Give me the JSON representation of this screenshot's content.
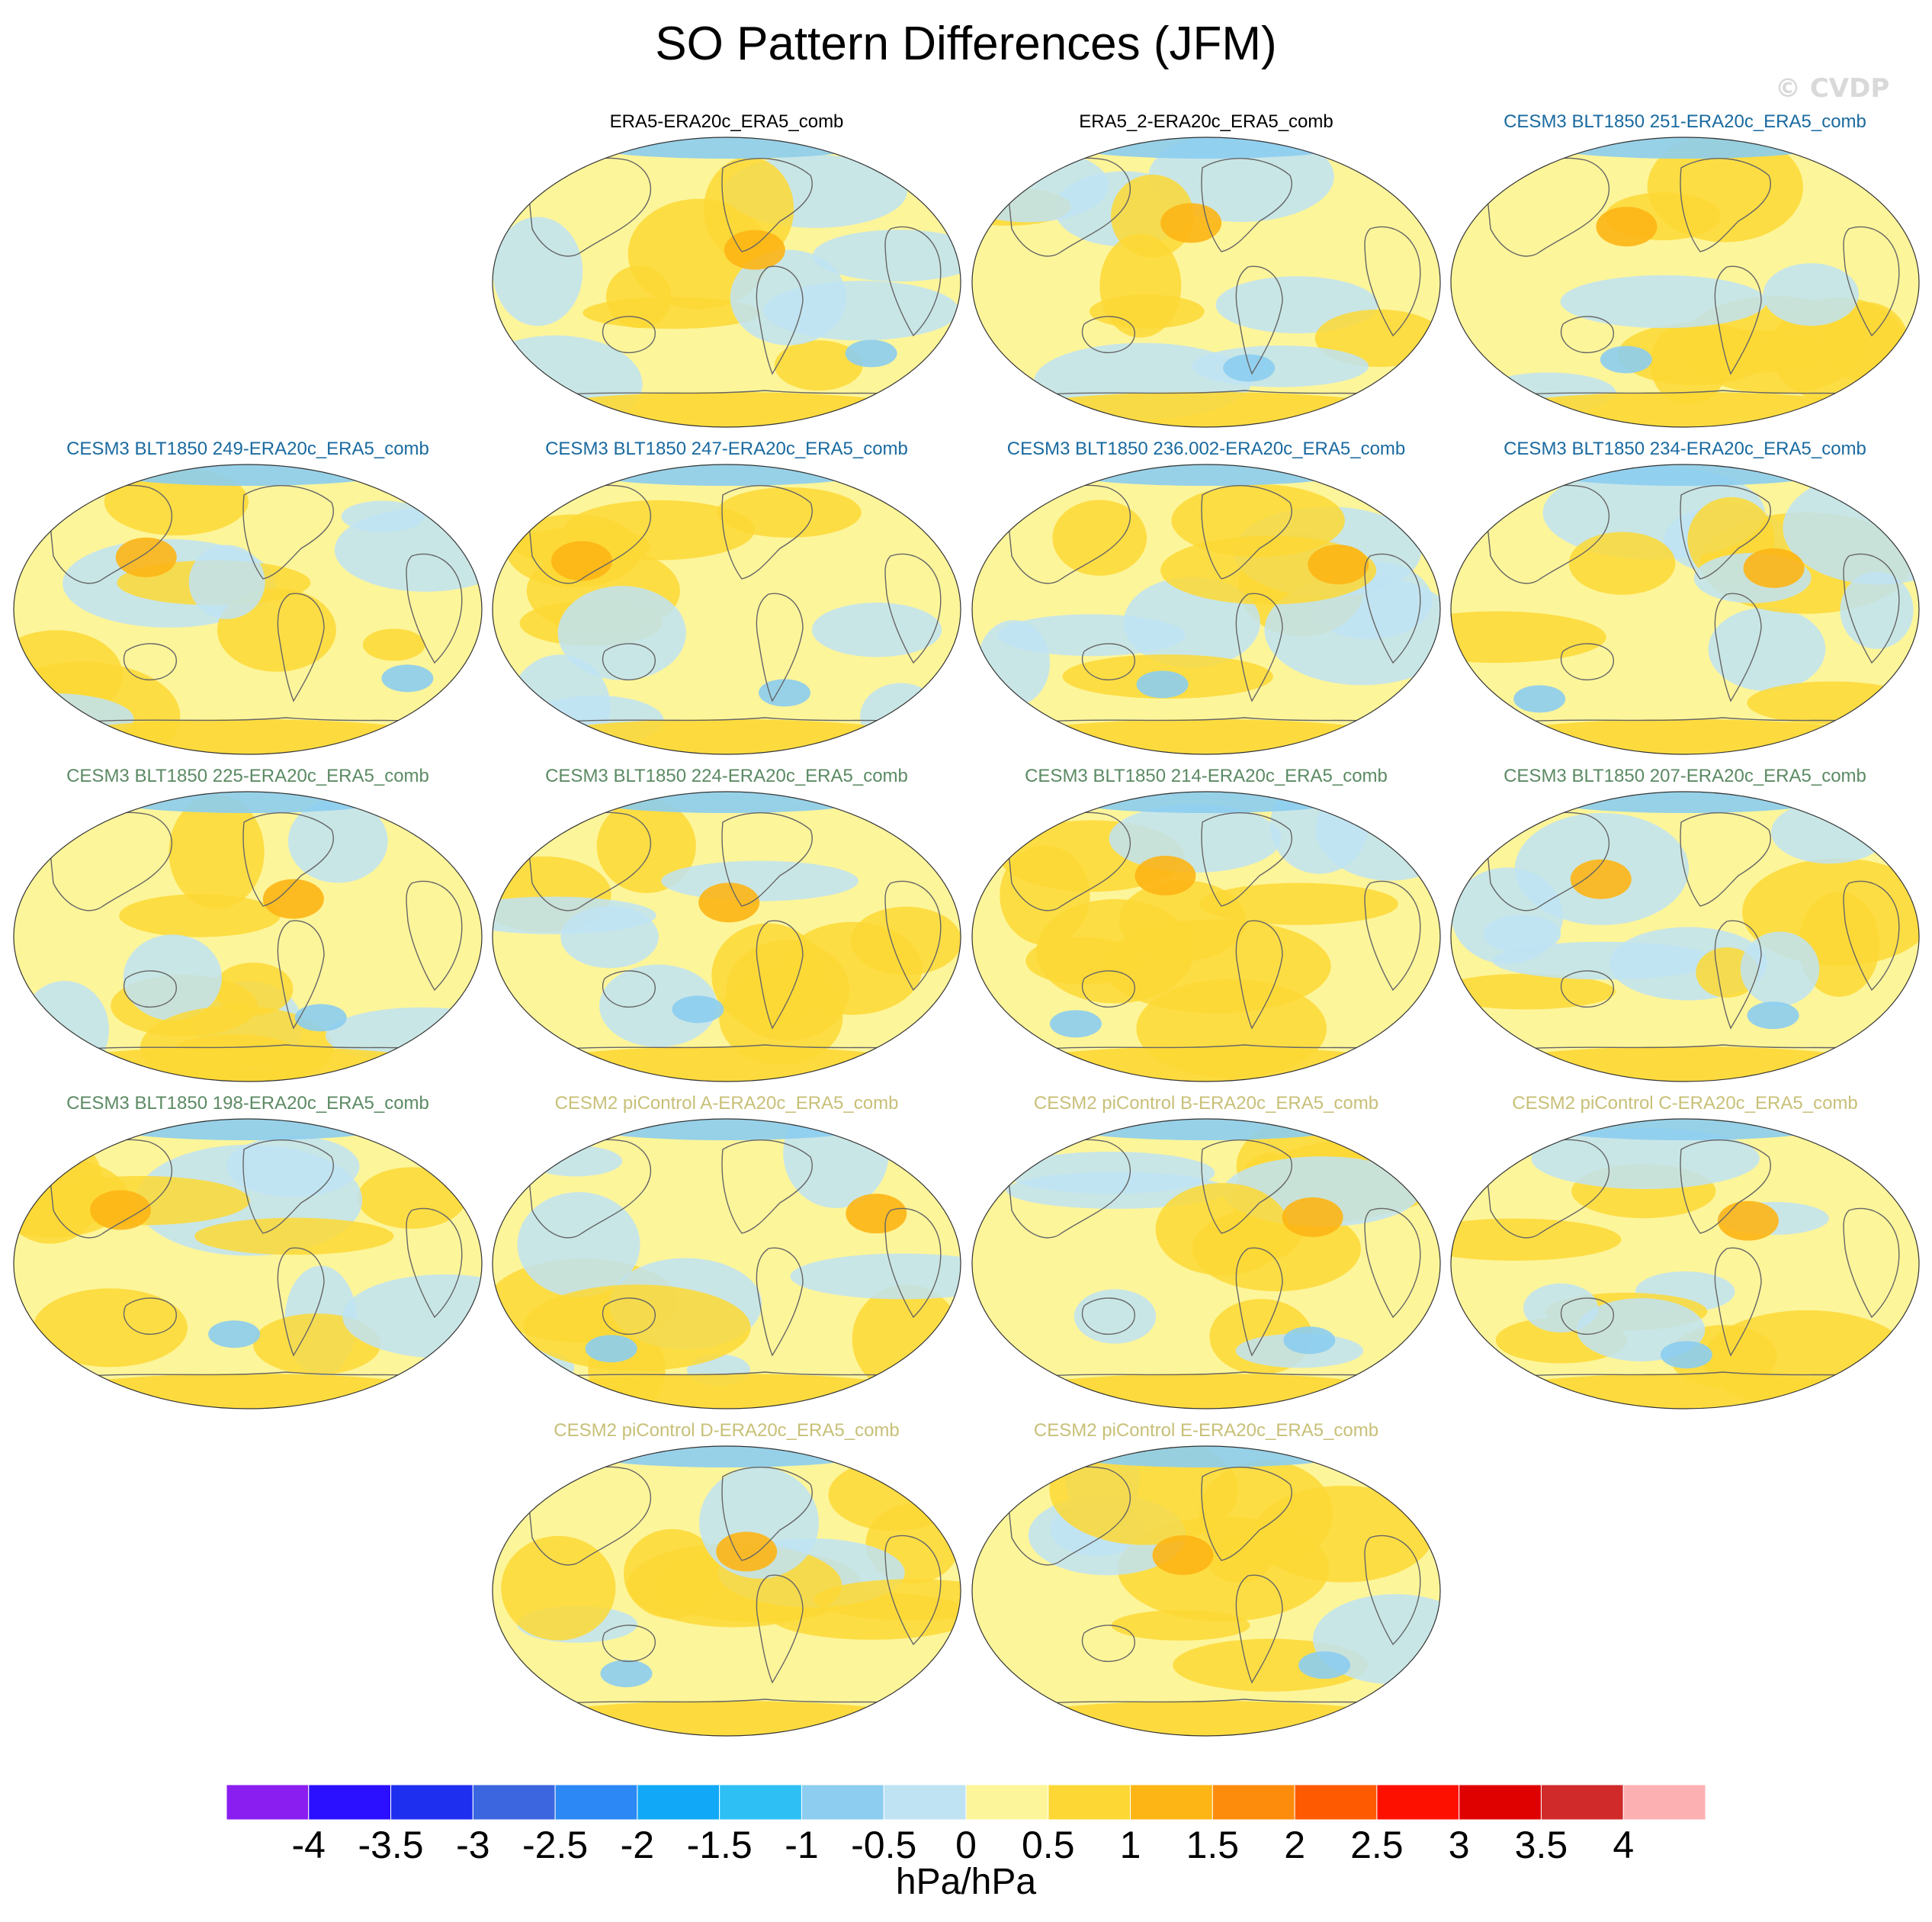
{
  "title": "SO Pattern Differences (JFM)",
  "watermark": "© CVDP",
  "colors": {
    "group_obs": "#000000",
    "group_cesm3_a": "#1a6aa0",
    "group_cesm3_b": "#5b8a63",
    "group_cesm2": "#c8c078",
    "ocean_neutral": "#fdf59a",
    "coast": "#666666"
  },
  "panels": [
    {
      "title": "ERA5-ERA20c_ERA5_comb",
      "group": "obs"
    },
    {
      "title": "ERA5_2-ERA20c_ERA5_comb",
      "group": "obs"
    },
    {
      "title": "CESM3 BLT1850 251-ERA20c_ERA5_comb",
      "group": "cesm3_a"
    },
    {
      "title": "CESM3 BLT1850 249-ERA20c_ERA5_comb",
      "group": "cesm3_a"
    },
    {
      "title": "CESM3 BLT1850 247-ERA20c_ERA5_comb",
      "group": "cesm3_a"
    },
    {
      "title": "CESM3 BLT1850 236.002-ERA20c_ERA5_comb",
      "group": "cesm3_a"
    },
    {
      "title": "CESM3 BLT1850 234-ERA20c_ERA5_comb",
      "group": "cesm3_a"
    },
    {
      "title": "CESM3 BLT1850 225-ERA20c_ERA5_comb",
      "group": "cesm3_b"
    },
    {
      "title": "CESM3 BLT1850 224-ERA20c_ERA5_comb",
      "group": "cesm3_b"
    },
    {
      "title": "CESM3 BLT1850 214-ERA20c_ERA5_comb",
      "group": "cesm3_b"
    },
    {
      "title": "CESM3 BLT1850 207-ERA20c_ERA5_comb",
      "group": "cesm3_b"
    },
    {
      "title": "CESM3 BLT1850 198-ERA20c_ERA5_comb",
      "group": "cesm3_b"
    },
    {
      "title": "CESM2 piControl A-ERA20c_ERA5_comb",
      "group": "cesm2"
    },
    {
      "title": "CESM2 piControl B-ERA20c_ERA5_comb",
      "group": "cesm2"
    },
    {
      "title": "CESM2 piControl C-ERA20c_ERA5_comb",
      "group": "cesm2"
    },
    {
      "title": "CESM2 piControl D-ERA20c_ERA5_comb",
      "group": "cesm2"
    },
    {
      "title": "CESM2 piControl E-ERA20c_ERA5_comb",
      "group": "cesm2"
    }
  ],
  "chart_data": {
    "type": "heatmap",
    "projection": "robinson-like, global",
    "colorbar": {
      "levels": [
        "-4",
        "-3.5",
        "-3",
        "-2.5",
        "-2",
        "-1.5",
        "-1",
        "-0.5",
        "0",
        "0.5",
        "1",
        "1.5",
        "2",
        "2.5",
        "3",
        "3.5",
        "4"
      ],
      "colors": [
        "#8a1ef0",
        "#2a10ff",
        "#1e2ff0",
        "#3b66e0",
        "#2c88f4",
        "#12a8f8",
        "#2ec0f5",
        "#8ccdf0",
        "#bfe3f3",
        "#fdf59a",
        "#fdd835",
        "#fdb515",
        "#fd8c0c",
        "#fe5a02",
        "#fe1000",
        "#df0000",
        "#d02a2a",
        "#fdb0b2"
      ],
      "units": "hPa/hPa"
    }
  }
}
